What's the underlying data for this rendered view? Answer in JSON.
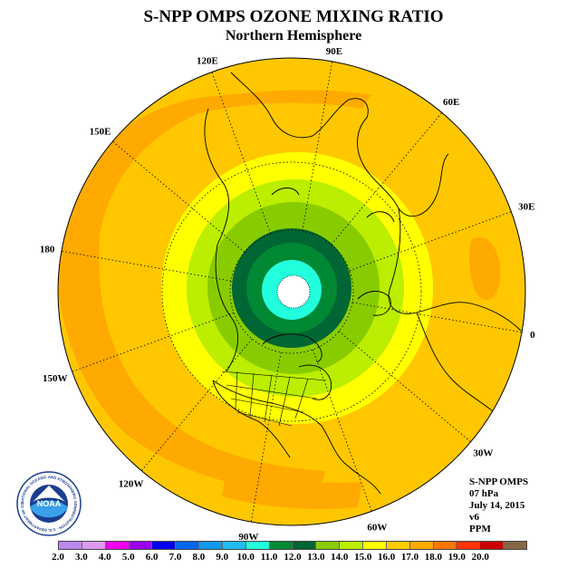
{
  "title": "S-NPP OMPS OZONE MIXING RATIO",
  "subtitle": "Northern Hemisphere",
  "longitude_labels": [
    "90E",
    "60E",
    "30E",
    "0",
    "30W",
    "60W",
    "90W",
    "120W",
    "150W",
    "180",
    "150E",
    "120E"
  ],
  "info": {
    "instrument": "S-NPP OMPS",
    "pressure": "07 hPa",
    "date": "July 14, 2015",
    "version": "v6",
    "units": "PPM"
  },
  "logo": {
    "text": "NOAA",
    "ring_text": "NATIONAL OCEANIC AND ATMOSPHERIC ADMINISTRATION · U.S. DEPARTMENT OF COMMERCE"
  },
  "colorbar": {
    "tick_labels": [
      "2.0",
      "3.0",
      "4.0",
      "5.0",
      "6.0",
      "7.0",
      "8.0",
      "9.0",
      "10.0",
      "11.0",
      "12.0",
      "13.0",
      "14.0",
      "15.0",
      "16.0",
      "17.0",
      "18.0",
      "19.0",
      "20.0"
    ],
    "colors": [
      "#bb88ee",
      "#dd99ee",
      "#ee00ee",
      "#9900ee",
      "#0000ee",
      "#0066ee",
      "#1199ee",
      "#22bbee",
      "#22ffdd",
      "#008833",
      "#006633",
      "#88cc00",
      "#bbee00",
      "#ffff00",
      "#ffcc00",
      "#ffaa00",
      "#ff7700",
      "#ff3300",
      "#cc0000",
      "#886644"
    ]
  }
}
